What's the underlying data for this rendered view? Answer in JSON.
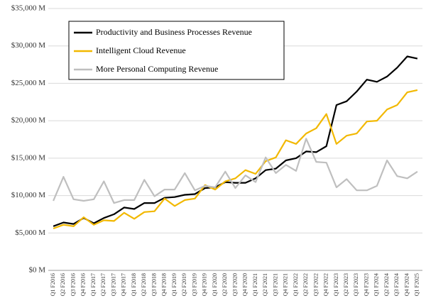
{
  "chart_data": {
    "type": "line",
    "categories": [
      "Q1 F2016",
      "Q2 F2016",
      "Q3 F2016",
      "Q4 F2016",
      "Q1 F2017",
      "Q2 F2017",
      "Q3 F2017",
      "Q4 F2017",
      "Q1 F2018",
      "Q2 F2018",
      "Q3 F2018",
      "Q4 F2018",
      "Q1 F2019",
      "Q2 F2019",
      "Q3 F2019",
      "Q4 F2019",
      "Q1 F2020",
      "Q2 F2020",
      "Q3 F2020",
      "Q4 F2020",
      "Q1 F2021",
      "Q2 F2021",
      "Q3 F2021",
      "Q4 F2021",
      "Q1 F2022",
      "Q2 F2022",
      "Q3 F2022",
      "Q4 F2022",
      "Q1 F2023",
      "Q2 F2023",
      "Q3 F2023",
      "Q4 F2023",
      "Q1 F2024",
      "Q2 F2024",
      "Q3 F2024",
      "Q4 F2024",
      "Q1 F2025"
    ],
    "series": [
      {
        "name": "Productivity and Business Processes Revenue",
        "color": "#000000",
        "values": [
          5900,
          6400,
          6200,
          7000,
          6300,
          7000,
          7500,
          8400,
          8200,
          9000,
          9000,
          9700,
          9800,
          10100,
          10200,
          11000,
          11100,
          11800,
          11700,
          11700,
          12300,
          13400,
          13600,
          14700,
          15000,
          15900,
          15800,
          16600,
          22100,
          22600,
          23900,
          25500,
          25200,
          25900,
          27100,
          28600,
          28300
        ]
      },
      {
        "name": "Intelligent Cloud Revenue",
        "color": "#f2b800",
        "values": [
          5600,
          6100,
          5900,
          7100,
          6100,
          6700,
          6600,
          7700,
          6900,
          7800,
          7900,
          9600,
          8600,
          9400,
          9600,
          11400,
          10800,
          11900,
          12300,
          13400,
          12900,
          14600,
          15100,
          17400,
          16900,
          18300,
          19000,
          20900,
          16900,
          18000,
          18300,
          19900,
          20000,
          21500,
          22100,
          23800,
          24100
        ]
      },
      {
        "name": "More Personal Computing Revenue",
        "color": "#bfbfbf",
        "values": [
          9300,
          12500,
          9500,
          9300,
          9500,
          11900,
          9000,
          9400,
          9400,
          12100,
          9900,
          10800,
          10800,
          13000,
          10700,
          11300,
          11100,
          13200,
          11000,
          12700,
          11800,
          15100,
          13000,
          14100,
          13300,
          17600,
          14500,
          14400,
          11100,
          12200,
          10700,
          10700,
          11300,
          14700,
          12600,
          12300,
          13200
        ]
      }
    ],
    "ylim": [
      0,
      35000
    ],
    "yticks": [
      {
        "value": 0,
        "label": "$0 M"
      },
      {
        "value": 5000,
        "label": "$5,000 M"
      },
      {
        "value": 10000,
        "label": "$10,000 M"
      },
      {
        "value": 15000,
        "label": "$15,000 M"
      },
      {
        "value": 20000,
        "label": "$20,000 M"
      },
      {
        "value": 25000,
        "label": "$25,000 M"
      },
      {
        "value": 30000,
        "label": "$30,000 M"
      },
      {
        "value": 35000,
        "label": "$35,000 M"
      }
    ],
    "grid": true
  }
}
